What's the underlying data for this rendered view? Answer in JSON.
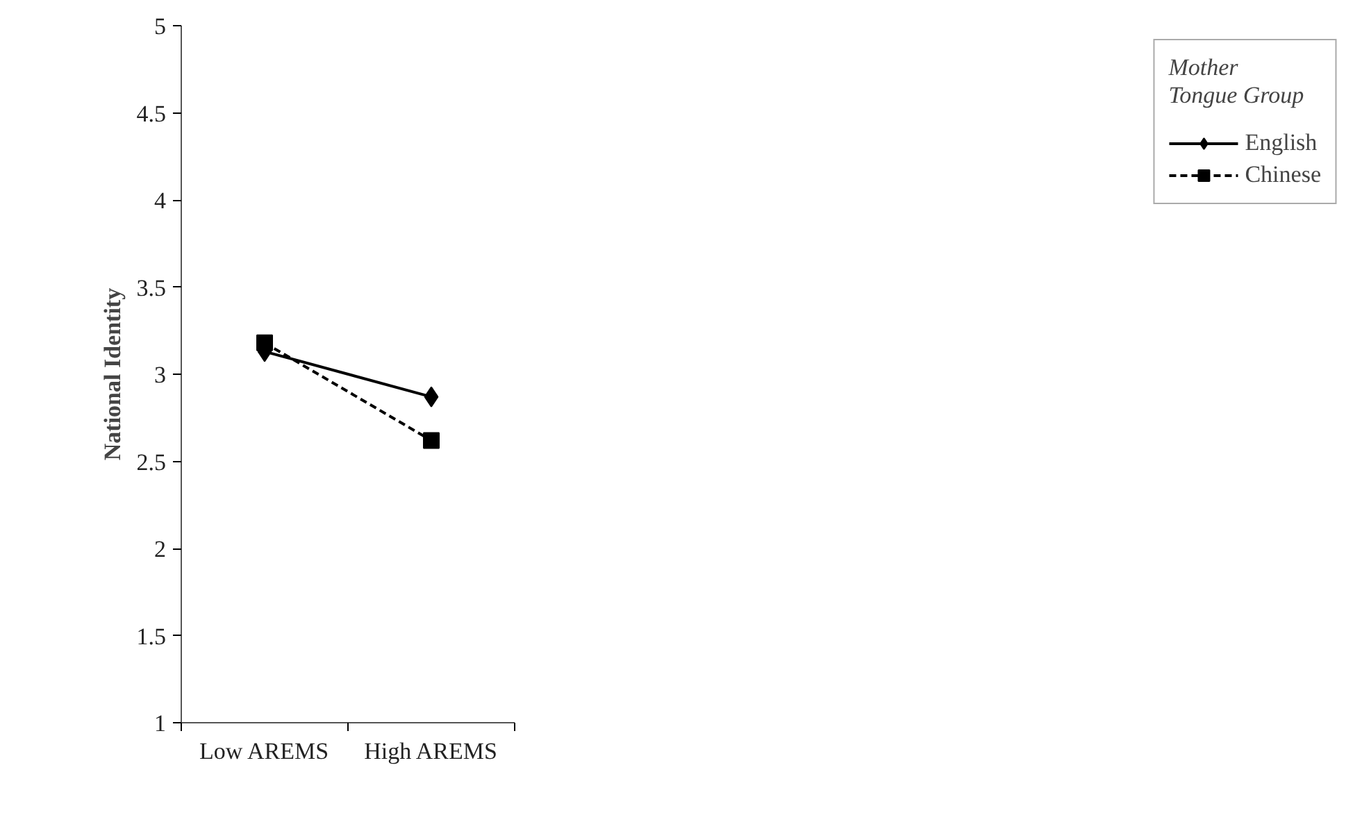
{
  "chart_data": {
    "type": "line",
    "ylabel": "National Identity",
    "legend_title": "Mother Tongue Group",
    "categories": [
      "Low AREMS",
      "High AREMS"
    ],
    "series": [
      {
        "name": "English",
        "color": "#000000",
        "values": [
          3.13,
          2.87
        ],
        "marker": "diamond",
        "line_style": "solid"
      },
      {
        "name": "Chinese",
        "color": "#000000",
        "values": [
          3.18,
          2.62
        ],
        "marker": "square",
        "line_style": "dashed"
      }
    ],
    "ylim": [
      1,
      5
    ],
    "yticks": [
      1,
      1.5,
      2,
      2.5,
      3,
      3.5,
      4,
      4.5,
      5
    ],
    "grid": false,
    "legend": "right"
  }
}
